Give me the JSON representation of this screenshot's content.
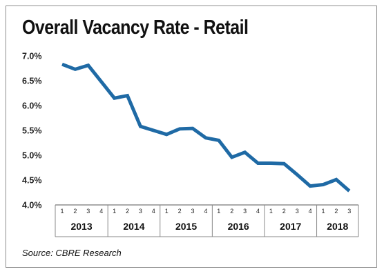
{
  "title": "Overall Vacancy Rate - Retail",
  "source": "Source: CBRE Research",
  "chart_data": {
    "type": "line",
    "title": "Overall Vacancy Rate - Retail",
    "xlabel": "",
    "ylabel": "",
    "ylim": [
      4.0,
      7.0
    ],
    "y_ticks": [
      "7.0%",
      "6.5%",
      "6.0%",
      "5.5%",
      "5.0%",
      "4.5%",
      "4.0%"
    ],
    "grid": false,
    "legend": "none",
    "line_color": "#1f6aa5",
    "years": [
      {
        "label": "2013",
        "quarters": [
          "1",
          "2",
          "3",
          "4"
        ]
      },
      {
        "label": "2014",
        "quarters": [
          "1",
          "2",
          "3",
          "4"
        ]
      },
      {
        "label": "2015",
        "quarters": [
          "1",
          "2",
          "3",
          "4"
        ]
      },
      {
        "label": "2016",
        "quarters": [
          "1",
          "2",
          "3",
          "4"
        ]
      },
      {
        "label": "2017",
        "quarters": [
          "1",
          "2",
          "3",
          "4"
        ]
      },
      {
        "label": "2018",
        "quarters": [
          "1",
          "2",
          "3"
        ]
      }
    ],
    "series": [
      {
        "values": [
          6.83,
          6.73,
          6.81,
          6.48,
          6.15,
          6.2,
          5.58,
          5.5,
          5.42,
          5.53,
          5.54,
          5.35,
          5.3,
          4.96,
          5.06,
          4.84,
          4.84,
          4.83,
          4.61,
          4.38,
          4.41,
          4.51,
          4.28
        ]
      }
    ]
  }
}
